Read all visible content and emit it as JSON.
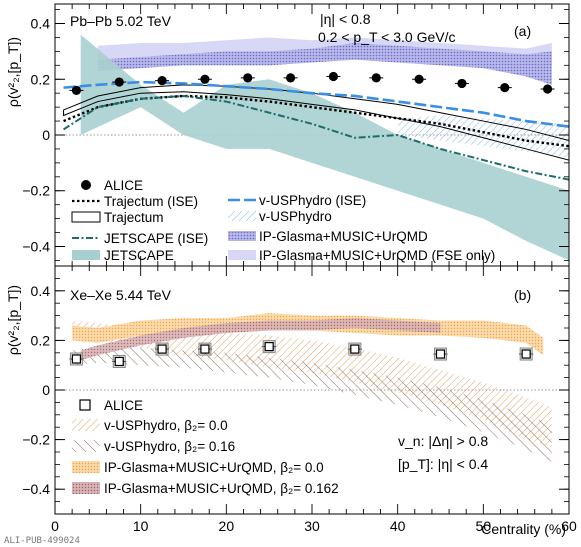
{
  "chart_data": [
    {
      "type": "line",
      "panel_tag": "(a)",
      "system_label": "Pb–Pb 5.02 TeV",
      "cuts": [
        "|η| < 0.8",
        "0.2 < p_T < 3.0 GeV/c"
      ],
      "ylabel": "ρ(v²₂,[p_T])",
      "ylim": [
        -0.47,
        0.47
      ],
      "xlim": [
        0,
        60
      ],
      "yticks": [
        "−0.4",
        "−0.2",
        "0",
        "0.2",
        "0.4"
      ],
      "legend_left": [
        "ALICE",
        "Trajectum (ISE)",
        "Trajectum",
        "JETSCAPE (ISE)",
        "JETSCAPE"
      ],
      "legend_right": [
        "v-USPhydro (ISE)",
        "v-USPhydro",
        "IP-Glasma+MUSIC+UrQMD",
        "IP-Glasma+MUSIC+UrQMD (FSE only)"
      ],
      "series": [
        {
          "name": "ALICE",
          "x": [
            2.5,
            7.5,
            12.5,
            17.5,
            22.5,
            27.5,
            32.5,
            37.5,
            42.5,
            47.5,
            52.5,
            57.5
          ],
          "y": [
            0.16,
            0.19,
            0.195,
            0.2,
            0.205,
            0.205,
            0.21,
            0.205,
            0.2,
            0.185,
            0.17,
            0.165
          ]
        },
        {
          "name": "Trajectum (ISE)",
          "x": [
            1,
            5,
            10,
            15,
            20,
            25,
            30,
            35,
            40,
            45,
            50,
            55,
            60
          ],
          "y": [
            0.05,
            0.1,
            0.13,
            0.14,
            0.135,
            0.12,
            0.1,
            0.08,
            0.06,
            0.04,
            0.01,
            -0.02,
            -0.04
          ]
        },
        {
          "name": "Trajectum",
          "x": [
            1,
            5,
            10,
            15,
            20,
            25,
            30,
            35,
            40,
            45,
            50,
            55,
            60
          ],
          "upper": [
            0.09,
            0.14,
            0.17,
            0.18,
            0.175,
            0.165,
            0.15,
            0.13,
            0.11,
            0.08,
            0.05,
            0.02,
            -0.02
          ],
          "lower": [
            0.07,
            0.12,
            0.15,
            0.155,
            0.145,
            0.13,
            0.11,
            0.09,
            0.06,
            0.03,
            -0.01,
            -0.05,
            -0.09
          ]
        },
        {
          "name": "JETSCAPE (ISE)",
          "x": [
            1,
            5,
            10,
            15,
            20,
            25,
            30,
            35,
            40,
            45,
            50,
            55,
            60
          ],
          "y": [
            0.02,
            0.1,
            0.13,
            0.14,
            0.12,
            0.08,
            0.04,
            -0.01,
            0.0,
            -0.05,
            -0.09,
            -0.13,
            -0.16
          ]
        },
        {
          "name": "JETSCAPE",
          "x": [
            3,
            10,
            15,
            20,
            25,
            30,
            35,
            40,
            45,
            50,
            55,
            60
          ],
          "upper": [
            0.36,
            0.18,
            0.08,
            0.18,
            0.2,
            0.15,
            0.08,
            0.0,
            -0.05,
            -0.1,
            -0.15,
            -0.2
          ],
          "lower": [
            0.0,
            0.1,
            0.0,
            -0.05,
            -0.05,
            -0.1,
            -0.15,
            -0.2,
            -0.25,
            -0.3,
            -0.38,
            -0.45
          ]
        },
        {
          "name": "v-USPhydro (ISE)",
          "x": [
            1,
            5,
            10,
            15,
            20,
            25,
            30,
            35,
            40,
            45,
            50,
            55,
            60
          ],
          "y": [
            0.17,
            0.18,
            0.19,
            0.185,
            0.175,
            0.165,
            0.15,
            0.14,
            0.12,
            0.1,
            0.08,
            0.05,
            0.03
          ]
        },
        {
          "name": "v-USPhydro",
          "x": [
            40,
            45,
            50,
            55,
            60
          ],
          "upper": [
            0.06,
            0.07,
            0.06,
            0.05,
            0.04
          ],
          "lower": [
            0.0,
            -0.02,
            -0.04,
            -0.06,
            -0.08
          ]
        },
        {
          "name": "IP-Glasma+MUSIC+UrQMD",
          "x": [
            5,
            10,
            15,
            20,
            25,
            30,
            35,
            40,
            45,
            50,
            55,
            58
          ],
          "upper": [
            0.27,
            0.28,
            0.29,
            0.3,
            0.3,
            0.31,
            0.33,
            0.32,
            0.31,
            0.3,
            0.29,
            0.3
          ],
          "lower": [
            0.23,
            0.24,
            0.25,
            0.25,
            0.25,
            0.26,
            0.27,
            0.26,
            0.25,
            0.24,
            0.21,
            0.18
          ]
        },
        {
          "name": "IP-Glasma+MUSIC+UrQMD (FSE only)",
          "x": [
            5,
            10,
            15,
            20,
            25,
            30,
            35,
            40,
            45,
            50,
            55,
            58
          ],
          "upper": [
            0.32,
            0.33,
            0.33,
            0.34,
            0.35,
            0.34,
            0.35,
            0.34,
            0.33,
            0.32,
            0.31,
            0.33
          ],
          "lower": [
            0.26,
            0.27,
            0.27,
            0.28,
            0.28,
            0.29,
            0.3,
            0.29,
            0.28,
            0.27,
            0.25,
            0.24
          ]
        }
      ]
    },
    {
      "type": "line",
      "panel_tag": "(b)",
      "system_label": "Xe–Xe 5.44 TeV",
      "cuts": [
        "v_n: |Δη| > 0.8",
        "[p_T]: |η| < 0.4"
      ],
      "ylabel": "ρ(v²₂,[p_T])",
      "xlabel": "Centrality (%)",
      "xticks": [
        "0",
        "10",
        "20",
        "30",
        "40",
        "50",
        "60"
      ],
      "ylim": [
        -0.5,
        0.5
      ],
      "xlim": [
        0,
        60
      ],
      "yticks": [
        "−0.4",
        "−0.2",
        "0",
        "0.2",
        "0.4"
      ],
      "legend": [
        "ALICE",
        "v-USPhydro, β₂= 0.0",
        "v-USPhydro, β₂= 0.16",
        "IP-Glasma+MUSIC+UrQMD, β₂= 0.0",
        "IP-Glasma+MUSIC+UrQMD, β₂= 0.162"
      ],
      "series": [
        {
          "name": "ALICE",
          "x": [
            2.5,
            7.5,
            12.5,
            17.5,
            25,
            35,
            45,
            55
          ],
          "y": [
            0.125,
            0.115,
            0.165,
            0.165,
            0.175,
            0.165,
            0.145,
            0.145
          ]
        },
        {
          "name": "v-USPhydro, β₂= 0.0",
          "x": [
            2,
            5,
            10,
            15,
            20,
            25,
            30,
            35,
            40,
            45,
            50,
            55,
            58
          ],
          "upper": [
            0.28,
            0.27,
            0.25,
            0.24,
            0.23,
            0.22,
            0.2,
            0.17,
            0.13,
            0.08,
            0.03,
            -0.03,
            -0.07
          ],
          "lower": [
            0.22,
            0.2,
            0.17,
            0.14,
            0.12,
            0.09,
            0.07,
            0.03,
            -0.01,
            -0.06,
            -0.12,
            -0.2,
            -0.23
          ]
        },
        {
          "name": "v-USPhydro, β₂= 0.16",
          "x": [
            2,
            5,
            10,
            15,
            20,
            25,
            30,
            35,
            40,
            45,
            50,
            55,
            58
          ],
          "upper": [
            0.16,
            0.18,
            0.17,
            0.16,
            0.15,
            0.13,
            0.11,
            0.08,
            0.05,
            0.01,
            -0.04,
            -0.1,
            -0.14
          ],
          "lower": [
            0.1,
            0.11,
            0.1,
            0.09,
            0.07,
            0.05,
            0.02,
            -0.02,
            -0.06,
            -0.11,
            -0.17,
            -0.24,
            -0.29
          ]
        },
        {
          "name": "IP-Glasma+MUSIC+UrQMD, β₂= 0.0",
          "x": [
            2,
            5,
            10,
            15,
            20,
            25,
            30,
            35,
            40,
            45,
            50,
            55,
            57
          ],
          "upper": [
            0.26,
            0.25,
            0.28,
            0.29,
            0.29,
            0.31,
            0.3,
            0.3,
            0.29,
            0.28,
            0.28,
            0.26,
            0.21
          ],
          "lower": [
            0.2,
            0.19,
            0.22,
            0.23,
            0.23,
            0.24,
            0.24,
            0.23,
            0.22,
            0.22,
            0.21,
            0.19,
            0.14
          ]
        },
        {
          "name": "IP-Glasma+MUSIC+UrQMD, β₂= 0.162",
          "x": [
            3,
            5,
            10,
            15,
            20,
            25,
            30,
            35,
            40,
            45
          ],
          "upper": [
            0.16,
            0.18,
            0.22,
            0.25,
            0.27,
            0.28,
            0.28,
            0.29,
            0.28,
            0.27
          ],
          "lower": [
            0.12,
            0.14,
            0.18,
            0.21,
            0.23,
            0.24,
            0.24,
            0.25,
            0.24,
            0.23
          ]
        }
      ]
    }
  ],
  "footer": "ALI-PUB-499024"
}
